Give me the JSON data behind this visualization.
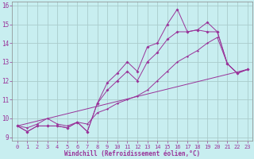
{
  "xlabel": "Windchill (Refroidissement éolien,°C)",
  "bg_color": "#c8eef0",
  "grid_color": "#aacccc",
  "line_color": "#993399",
  "xlim": [
    -0.5,
    23.5
  ],
  "ylim": [
    8.8,
    16.2
  ],
  "yticks": [
    9,
    10,
    11,
    12,
    13,
    14,
    15,
    16
  ],
  "xticks": [
    0,
    1,
    2,
    3,
    4,
    5,
    6,
    7,
    8,
    9,
    10,
    11,
    12,
    13,
    14,
    15,
    16,
    17,
    18,
    19,
    20,
    21,
    22,
    23
  ],
  "line1_x": [
    0,
    1,
    2,
    3,
    4,
    5,
    6,
    7,
    8,
    9,
    10,
    11,
    12,
    13,
    14,
    15,
    16,
    17,
    18,
    19,
    20,
    21,
    22,
    23
  ],
  "line1_y": [
    9.6,
    9.3,
    9.6,
    9.6,
    9.6,
    9.5,
    9.8,
    9.3,
    10.8,
    11.9,
    12.4,
    13.0,
    12.5,
    13.8,
    14.0,
    15.0,
    15.8,
    14.6,
    14.7,
    15.1,
    14.6,
    12.9,
    12.4,
    12.6
  ],
  "line2_x": [
    0,
    1,
    2,
    3,
    4,
    5,
    6,
    7,
    8,
    9,
    10,
    11,
    12,
    13,
    14,
    15,
    16,
    17,
    18,
    19,
    20,
    21,
    22,
    23
  ],
  "line2_y": [
    9.6,
    9.3,
    9.6,
    9.6,
    9.6,
    9.5,
    9.8,
    9.3,
    10.8,
    11.5,
    12.0,
    12.5,
    12.0,
    13.0,
    13.5,
    14.2,
    14.6,
    14.6,
    14.7,
    14.6,
    14.6,
    12.9,
    12.4,
    12.6
  ],
  "line3_x": [
    0,
    1,
    2,
    3,
    4,
    5,
    6,
    7,
    8,
    9,
    10,
    11,
    12,
    13,
    14,
    15,
    16,
    17,
    18,
    19,
    20,
    21,
    22,
    23
  ],
  "line3_y": [
    9.6,
    9.5,
    9.7,
    10.0,
    9.7,
    9.6,
    9.8,
    9.7,
    10.3,
    10.5,
    10.8,
    11.0,
    11.2,
    11.5,
    12.0,
    12.5,
    13.0,
    13.3,
    13.6,
    14.0,
    14.3,
    12.9,
    12.4,
    12.6
  ],
  "line4_x": [
    0,
    23
  ],
  "line4_y": [
    9.6,
    12.6
  ]
}
